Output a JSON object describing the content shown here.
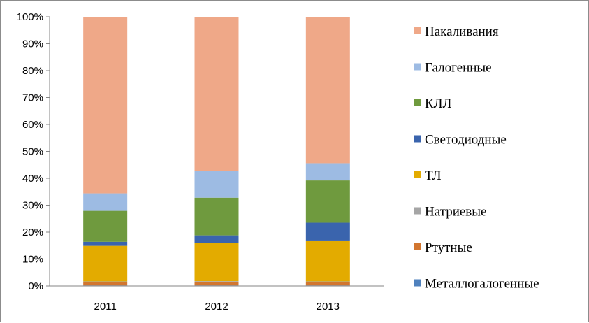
{
  "chart_data": {
    "type": "stacked-bar-100",
    "title": "",
    "xlabel": "",
    "ylabel": "",
    "categories": [
      "2011",
      "2012",
      "2013"
    ],
    "y_ticks": [
      "0%",
      "10%",
      "20%",
      "30%",
      "40%",
      "50%",
      "60%",
      "70%",
      "80%",
      "90%",
      "100%"
    ],
    "ylim": [
      0,
      100
    ],
    "grid": false,
    "legend_position": "right",
    "series": [
      {
        "name": "Металлогалогенные",
        "color": "#4f81bd",
        "values": [
          0.2,
          0.2,
          0.2
        ]
      },
      {
        "name": "Ртутные",
        "color": "#d2762f",
        "values": [
          1.3,
          1.4,
          1.3
        ]
      },
      {
        "name": "Натриевые",
        "color": "#a5a5a5",
        "values": [
          0.2,
          0.2,
          0.2
        ]
      },
      {
        "name": "ТЛ",
        "color": "#e3ab00",
        "values": [
          13.2,
          14.3,
          15.2
        ]
      },
      {
        "name": "Светодиодные",
        "color": "#3a64ad",
        "values": [
          1.5,
          2.7,
          6.6
        ]
      },
      {
        "name": "КЛЛ",
        "color": "#6f9a3e",
        "values": [
          11.5,
          14.0,
          15.7
        ]
      },
      {
        "name": "Галогенные",
        "color": "#9dbbe3",
        "values": [
          6.5,
          10.0,
          6.4
        ]
      },
      {
        "name": "Накаливания",
        "color": "#efa888",
        "values": [
          65.6,
          57.2,
          54.4
        ]
      }
    ]
  }
}
